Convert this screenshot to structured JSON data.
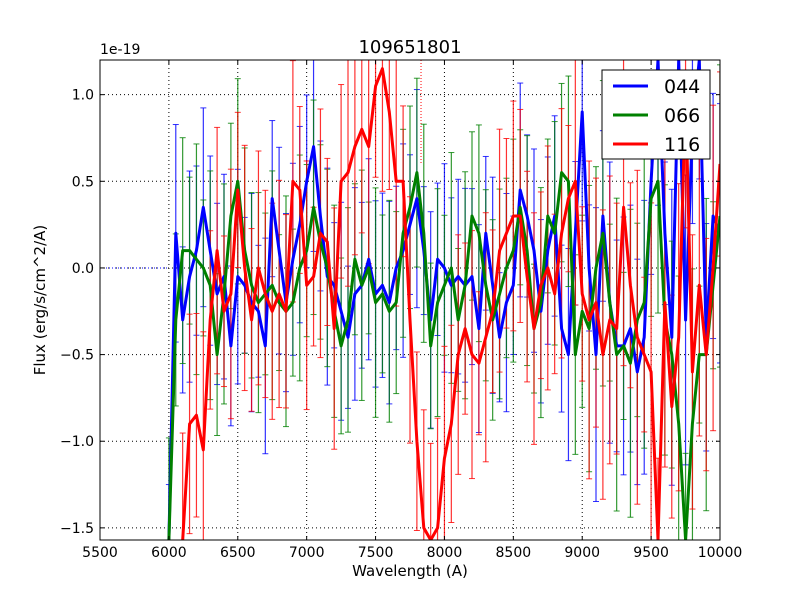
{
  "chart_data": {
    "type": "line",
    "title": "109651801",
    "xlabel": "Wavelength (A)",
    "ylabel": "Flux (erg/s/cm^2/A)",
    "y_offset_text": "1e-19",
    "xlim": [
      5500,
      10000
    ],
    "ylim": [
      -1.57,
      1.2
    ],
    "xticks": [
      5500,
      6000,
      6500,
      7000,
      7500,
      8000,
      8500,
      9000,
      9500,
      10000
    ],
    "xtick_labels": [
      "5500",
      "6000",
      "6500",
      "7000",
      "7500",
      "8000",
      "8500",
      "9000",
      "9500",
      "10000"
    ],
    "yticks": [
      -1.5,
      -1.0,
      -0.5,
      0.0,
      0.5,
      1.0
    ],
    "ytick_labels": [
      "−1.5",
      "−1.0",
      "−0.5",
      "0.0",
      "0.5",
      "1.0"
    ],
    "grid": true,
    "legend_position": "top-right",
    "x_start": 6000,
    "x_step": 50,
    "series": [
      {
        "name": "044",
        "color": "#0000ff",
        "yerr": 0.35,
        "values": [
          -1.6,
          0.2,
          -0.3,
          -0.05,
          0.1,
          0.35,
          0.1,
          -0.15,
          -0.05,
          -0.45,
          -0.05,
          -0.1,
          -0.2,
          -0.25,
          -0.45,
          0.4,
          0.1,
          -0.2,
          0.05,
          0.25,
          0.5,
          0.7,
          0.3,
          -0.05,
          -0.1,
          -0.25,
          -0.4,
          -0.15,
          -0.1,
          0.05,
          -0.15,
          -0.1,
          -0.2,
          0.0,
          0.1,
          0.25,
          0.4,
          0.1,
          -0.3,
          0.05,
          0.0,
          -0.1,
          -0.05,
          -0.1,
          -0.05,
          -0.35,
          0.2,
          -0.1,
          -0.4,
          -0.2,
          -0.1,
          0.45,
          0.3,
          0.1,
          -0.25,
          0.1,
          0.3,
          -0.35,
          -0.5,
          0.2,
          0.9,
          0.0,
          -0.5,
          0.3,
          -0.2,
          -0.45,
          -0.45,
          -0.35,
          -0.6,
          -0.4,
          0.5,
          1.2,
          0.2,
          -0.4,
          1.2,
          -0.3,
          0.8,
          1.3,
          -0.4,
          0.3,
          0.2
        ]
      },
      {
        "name": "066",
        "color": "#008000",
        "yerr": 0.37,
        "values": [
          -1.6,
          -0.3,
          0.1,
          0.1,
          0.05,
          0.0,
          -0.1,
          -0.5,
          -0.15,
          0.3,
          0.5,
          0.1,
          -0.1,
          -0.2,
          -0.15,
          -0.1,
          -0.2,
          -0.25,
          -0.2,
          0.0,
          0.1,
          0.35,
          0.15,
          0.0,
          -0.25,
          -0.45,
          -0.3,
          0.05,
          -0.1,
          0.0,
          -0.2,
          -0.15,
          -0.25,
          -0.2,
          0.2,
          0.35,
          0.55,
          0.2,
          -0.45,
          -0.2,
          -0.1,
          0.0,
          -0.3,
          -0.1,
          0.3,
          0.2,
          -0.1,
          -0.3,
          -0.15,
          0.0,
          0.1,
          0.35,
          0.1,
          -0.35,
          -0.2,
          0.3,
          0.2,
          0.55,
          0.5,
          -0.5,
          -0.25,
          -0.35,
          0.0,
          0.2,
          -0.2,
          -0.5,
          -0.45,
          -0.55,
          -0.3,
          -0.2,
          0.4,
          0.5,
          -0.3,
          -0.5,
          -0.9,
          -1.6,
          -0.9,
          -0.5,
          -0.5,
          -0.1,
          0.3
        ]
      },
      {
        "name": "116",
        "color": "#ff0000",
        "yerr": 0.4,
        "values": [
          null,
          null,
          -1.6,
          -0.9,
          -0.85,
          -1.05,
          -0.3,
          0.1,
          -0.25,
          -0.15,
          0.45,
          0.0,
          -0.3,
          0.0,
          -0.15,
          -0.25,
          -0.15,
          -0.25,
          0.5,
          0.45,
          -0.1,
          -0.05,
          0.2,
          0.15,
          -0.35,
          0.5,
          0.55,
          0.7,
          0.8,
          0.7,
          1.05,
          1.15,
          0.9,
          0.5,
          0.5,
          -0.3,
          -1.0,
          -1.5,
          -1.6,
          -1.5,
          -1.1,
          -0.9,
          -0.5,
          -0.35,
          -0.5,
          -0.55,
          -0.4,
          -0.25,
          0.1,
          0.2,
          0.3,
          0.3,
          -0.05,
          -0.35,
          -0.1,
          0.0,
          -0.15,
          0.2,
          0.4,
          0.5,
          -0.15,
          -0.3,
          -0.2,
          -0.5,
          -0.3,
          -0.35,
          0.35,
          -0.1,
          -0.4,
          -0.5,
          -0.6,
          -1.6,
          -0.2,
          -0.8,
          -0.4,
          1.0,
          -0.6,
          -0.1,
          -0.5,
          0.0,
          0.6
        ]
      }
    ]
  }
}
